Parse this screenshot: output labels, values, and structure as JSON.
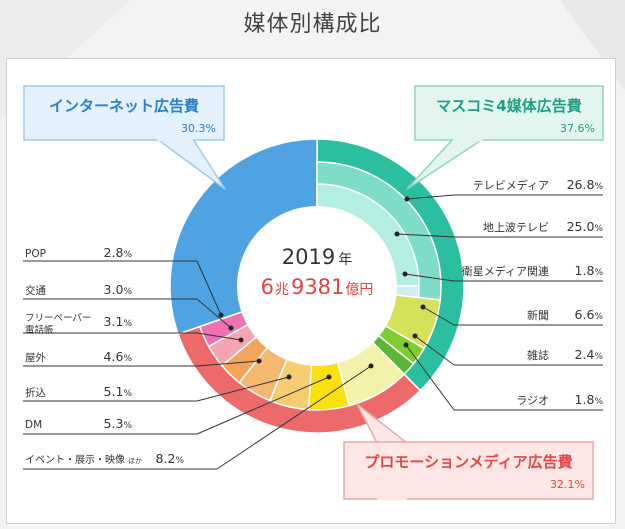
{
  "title": "媒体別構成比",
  "colors": {
    "internet": "#4fa3e2",
    "mass_outer": "#2bbfa0",
    "tv_group": "#7edcc8",
    "terrestrial_tv": "#b4eee3",
    "satellite": "#cdeef6",
    "newspaper": "#d5e15b",
    "magazine": "#7ece2d",
    "radio": "#59b637",
    "promo_outer": "#ec6a6a",
    "event": "#f3f1aa",
    "dm": "#fae10d",
    "insert": "#f6cc73",
    "outdoor": "#f5b871",
    "transit_book": "#f2a55a",
    "transport": "#f7a4b2",
    "pop": "#ee72b2"
  },
  "center": {
    "year": "2019",
    "year_unit": "年",
    "total_a": "6",
    "total_a_unit": "兆",
    "total_b": "9381",
    "total_b_unit": "億円"
  },
  "chart_data": {
    "type": "pie",
    "title": "媒体別構成比",
    "total": "6兆9381億円",
    "unit": "%",
    "groups": [
      {
        "name": "インターネット広告費",
        "value": 30.3
      },
      {
        "name": "マスコミ4媒体広告費",
        "value": 37.6
      },
      {
        "name": "プロモーションメディア広告費",
        "value": 32.1
      }
    ],
    "subgroup": [
      {
        "name": "テレビメディア",
        "value": 26.8,
        "parent": "マスコミ4媒体広告費"
      }
    ],
    "items": [
      {
        "name": "地上波テレビ",
        "value": 25.0,
        "parent": "テレビメディア"
      },
      {
        "name": "衛星メディア関連",
        "value": 1.8,
        "parent": "テレビメディア"
      },
      {
        "name": "新聞",
        "value": 6.6,
        "parent": "マスコミ4媒体広告費"
      },
      {
        "name": "雑誌",
        "value": 2.4,
        "parent": "マスコミ4媒体広告費"
      },
      {
        "name": "ラジオ",
        "value": 1.8,
        "parent": "マスコミ4媒体広告費"
      },
      {
        "name": "イベント・展示・映像",
        "suffix": "ほか",
        "value": 8.2,
        "parent": "プロモーションメディア広告費"
      },
      {
        "name": "DM",
        "value": 5.3,
        "parent": "プロモーションメディア広告費"
      },
      {
        "name": "折込",
        "value": 5.1,
        "parent": "プロモーションメディア広告費"
      },
      {
        "name": "屋外",
        "value": 4.6,
        "parent": "プロモーションメディア広告費"
      },
      {
        "name": "フリーペーパー電話帳",
        "lines": [
          "フリーペーパー",
          "電話帳"
        ],
        "value": 3.1,
        "parent": "プロモーションメディア広告費"
      },
      {
        "name": "交通",
        "value": 3.0,
        "parent": "プロモーションメディア広告費"
      },
      {
        "name": "POP",
        "value": 2.8,
        "parent": "プロモーションメディア広告費"
      }
    ]
  }
}
